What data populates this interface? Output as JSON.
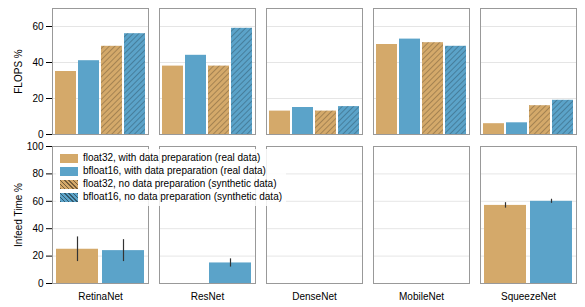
{
  "chart_data": [
    {
      "type": "bar",
      "categories": [
        "RetinaNet",
        "ResNet",
        "DenseNet",
        "MobileNet",
        "SqueezeNet"
      ],
      "series": [
        {
          "name": "float32, with data preparation (real data)",
          "color": "#D4A96A",
          "values": [
            35,
            38,
            13,
            50,
            6
          ]
        },
        {
          "name": "bfloat16, with data preparation (real data)",
          "color": "#5BA3C9",
          "values": [
            41,
            44,
            15,
            53,
            6.5
          ]
        },
        {
          "name": "float32, no data preparation (synthetic data)",
          "color": "#D4A96A",
          "values": [
            49,
            38,
            13,
            51,
            16
          ]
        },
        {
          "name": "bfloat16, no data preparation (synthetic data)",
          "color": "#5BA3C9",
          "values": [
            56,
            59,
            15.5,
            49,
            19
          ]
        }
      ],
      "ylabel": "FLOPS %",
      "ylim": [
        0,
        70
      ],
      "yticks": [
        0,
        20,
        40,
        60
      ],
      "grid": true,
      "tick_labels": "y"
    },
    {
      "type": "bar",
      "categories": [
        "RetinaNet",
        "ResNet",
        "DenseNet",
        "MobileNet",
        "SqueezeNet"
      ],
      "series": [
        {
          "name": "float32, with data preparation (real data)",
          "color": "#D4A96A",
          "values": [
            25,
            0,
            0,
            0,
            57
          ],
          "errors": [
            9,
            0,
            0,
            0,
            2
          ]
        },
        {
          "name": "bfloat16, with data preparation (real data)",
          "color": "#5BA3C9",
          "values": [
            24,
            15,
            0,
            0,
            60
          ],
          "errors": [
            8,
            3,
            0,
            0,
            1.5
          ]
        }
      ],
      "ylabel": "Infeed Time %",
      "ylim": [
        0,
        100
      ],
      "yticks": [
        0,
        20,
        40,
        60,
        80,
        100
      ],
      "grid": true,
      "legend": "upper left"
    }
  ]
}
